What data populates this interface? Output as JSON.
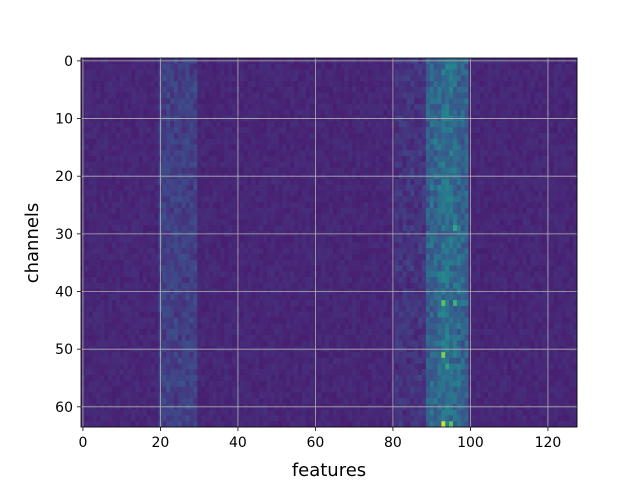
{
  "chart_data": {
    "type": "heatmap",
    "title": "",
    "xlabel": "features",
    "ylabel": "channels",
    "x_range": [
      0,
      127
    ],
    "y_range": [
      0,
      63
    ],
    "y_inverted": true,
    "x_ticks": [
      "0",
      "20",
      "40",
      "60",
      "80",
      "100",
      "120"
    ],
    "y_ticks": [
      "0",
      "10",
      "20",
      "30",
      "40",
      "50",
      "60"
    ],
    "grid": true,
    "colormap": "viridis",
    "n_rows": 64,
    "n_cols": 128,
    "dominant_band_features": [
      89,
      99
    ],
    "peak_feature": 94,
    "secondary_band_features": [
      20,
      29
    ],
    "bright_cells": [
      {
        "channel": 6,
        "feature": 92,
        "level": 0.5
      },
      {
        "channel": 7,
        "feature": 94,
        "level": 0.45
      },
      {
        "channel": 10,
        "feature": 94,
        "level": 0.55
      },
      {
        "channel": 16,
        "feature": 96,
        "level": 0.45
      },
      {
        "channel": 19,
        "feature": 93,
        "level": 0.45
      },
      {
        "channel": 22,
        "feature": 94,
        "level": 0.55
      },
      {
        "channel": 27,
        "feature": 95,
        "level": 0.45
      },
      {
        "channel": 29,
        "feature": 96,
        "level": 0.7
      },
      {
        "channel": 42,
        "feature": 93,
        "level": 0.8
      },
      {
        "channel": 42,
        "feature": 96,
        "level": 0.75
      },
      {
        "channel": 45,
        "feature": 95,
        "level": 0.5
      },
      {
        "channel": 51,
        "feature": 93,
        "level": 0.85
      },
      {
        "channel": 53,
        "feature": 94,
        "level": 0.7
      },
      {
        "channel": 63,
        "feature": 93,
        "level": 0.95
      },
      {
        "channel": 63,
        "feature": 95,
        "level": 0.8
      }
    ]
  }
}
